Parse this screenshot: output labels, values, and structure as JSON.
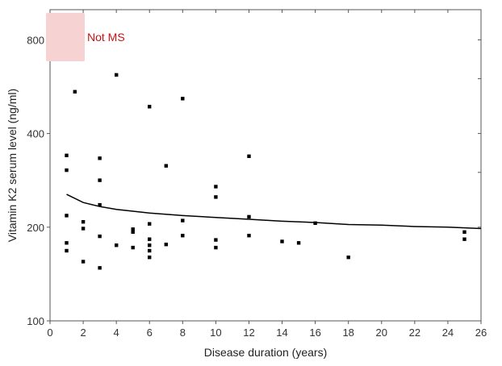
{
  "chart_data": {
    "type": "scatter",
    "title": "",
    "xlabel": "Disease duration (years)",
    "ylabel": "Vitamin K2 serum level (ng/ml)",
    "x_range": [
      0,
      26
    ],
    "x_ticks": [
      0,
      2,
      4,
      6,
      8,
      10,
      12,
      14,
      16,
      18,
      20,
      22,
      24,
      26
    ],
    "y_scale": "log",
    "y_range": [
      100,
      1000
    ],
    "y_ticks": [
      100,
      200,
      400,
      800
    ],
    "legend": {
      "label": "Not MS",
      "position": "top-left",
      "text_color": "#cc1111",
      "swatch_color": "#f7d2d2"
    },
    "colors": {
      "points": "#000000",
      "fit_line": "#000000",
      "axis": "#555555"
    },
    "points": [
      {
        "x": 1,
        "y": 340
      },
      {
        "x": 1,
        "y": 305
      },
      {
        "x": 1,
        "y": 218
      },
      {
        "x": 1,
        "y": 178
      },
      {
        "x": 1,
        "y": 168
      },
      {
        "x": 1.5,
        "y": 545
      },
      {
        "x": 2,
        "y": 208
      },
      {
        "x": 2,
        "y": 198
      },
      {
        "x": 2,
        "y": 155
      },
      {
        "x": 3,
        "y": 333
      },
      {
        "x": 3,
        "y": 283
      },
      {
        "x": 3,
        "y": 236
      },
      {
        "x": 3,
        "y": 187
      },
      {
        "x": 3,
        "y": 148
      },
      {
        "x": 4,
        "y": 617
      },
      {
        "x": 4,
        "y": 175
      },
      {
        "x": 5,
        "y": 197
      },
      {
        "x": 5,
        "y": 193
      },
      {
        "x": 5,
        "y": 172
      },
      {
        "x": 6,
        "y": 488
      },
      {
        "x": 6,
        "y": 205
      },
      {
        "x": 6,
        "y": 183
      },
      {
        "x": 6,
        "y": 175
      },
      {
        "x": 6,
        "y": 168
      },
      {
        "x": 6,
        "y": 160
      },
      {
        "x": 7,
        "y": 315
      },
      {
        "x": 7,
        "y": 176
      },
      {
        "x": 8,
        "y": 518
      },
      {
        "x": 8,
        "y": 210
      },
      {
        "x": 8,
        "y": 188
      },
      {
        "x": 10,
        "y": 270
      },
      {
        "x": 10,
        "y": 250
      },
      {
        "x": 10,
        "y": 182
      },
      {
        "x": 10,
        "y": 172
      },
      {
        "x": 12,
        "y": 338
      },
      {
        "x": 12,
        "y": 216
      },
      {
        "x": 12,
        "y": 188
      },
      {
        "x": 14,
        "y": 180
      },
      {
        "x": 15,
        "y": 178
      },
      {
        "x": 16,
        "y": 206
      },
      {
        "x": 18,
        "y": 160
      },
      {
        "x": 25,
        "y": 193
      },
      {
        "x": 25,
        "y": 183
      }
    ],
    "fit_curve": {
      "description": "fitted trend line",
      "points": [
        [
          1,
          255
        ],
        [
          2,
          240
        ],
        [
          3,
          233
        ],
        [
          4,
          228
        ],
        [
          6,
          222
        ],
        [
          8,
          218
        ],
        [
          10,
          215
        ],
        [
          12,
          212
        ],
        [
          14,
          209
        ],
        [
          16,
          207
        ],
        [
          18,
          204
        ],
        [
          20,
          203
        ],
        [
          22,
          201
        ],
        [
          24,
          200
        ],
        [
          26,
          198
        ]
      ]
    }
  }
}
